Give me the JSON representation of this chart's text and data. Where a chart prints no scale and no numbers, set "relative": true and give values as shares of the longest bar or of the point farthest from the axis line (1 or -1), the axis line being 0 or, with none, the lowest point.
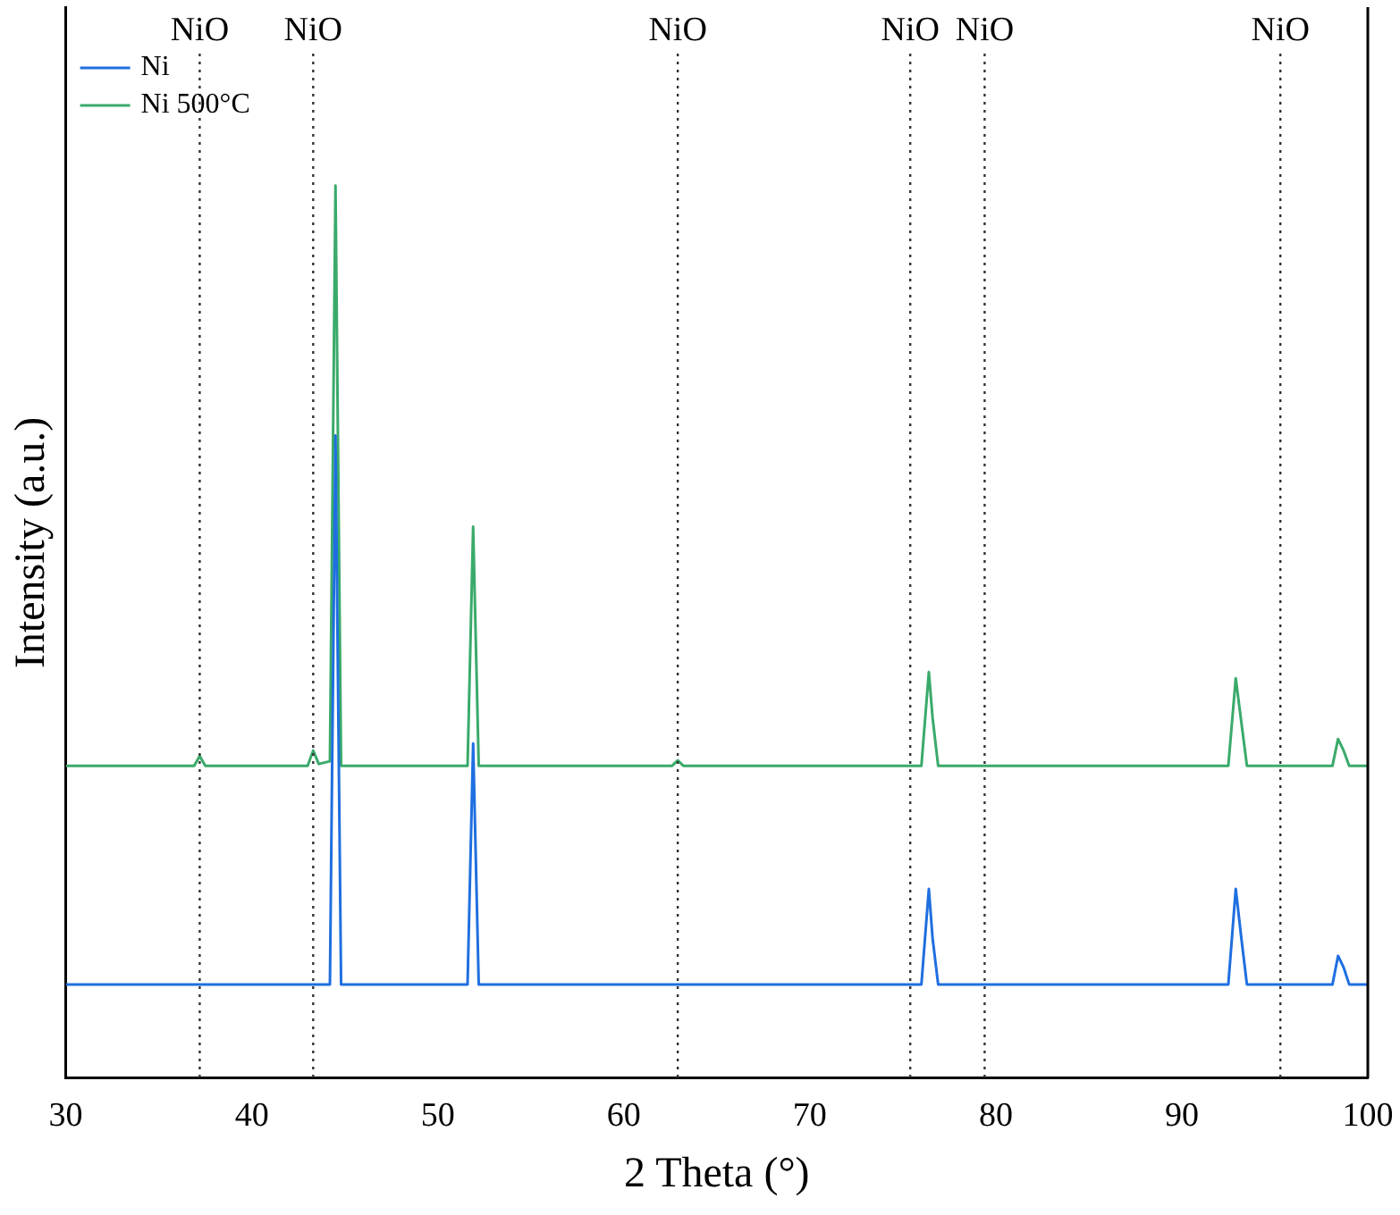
{
  "chart_data": {
    "type": "line",
    "relative": true,
    "xlabel": "2 Theta (°)",
    "ylabel": "Intensity (a.u.)",
    "xlim": [
      30,
      100
    ],
    "xticks": [
      30,
      40,
      50,
      60,
      70,
      80,
      90,
      100
    ],
    "legend": "top left",
    "grid": false,
    "marker": "none",
    "line_style": "solid",
    "series": [
      {
        "name": "Ni",
        "color": "#1f6fe0",
        "x": [
          30,
          44.2,
          44.5,
          44.8,
          51.6,
          51.9,
          52.2,
          76.0,
          76.4,
          76.6,
          76.9,
          92.5,
          92.9,
          93.2,
          93.5,
          98.1,
          98.4,
          98.7,
          99.0,
          100
        ],
        "values": [
          0.105,
          0.105,
          0.72,
          0.105,
          0.105,
          0.375,
          0.105,
          0.105,
          0.212,
          0.157,
          0.105,
          0.105,
          0.212,
          0.157,
          0.105,
          0.105,
          0.137,
          0.124,
          0.105,
          0.105
        ]
      },
      {
        "name": "Ni 500°C",
        "color": "#3aaa6a",
        "x": [
          30,
          36.9,
          37.2,
          37.5,
          43.0,
          43.3,
          43.6,
          44.2,
          44.5,
          44.8,
          51.6,
          51.9,
          52.2,
          62.6,
          62.9,
          63.2,
          76.0,
          76.4,
          76.6,
          76.9,
          92.5,
          92.9,
          93.2,
          93.5,
          98.1,
          98.4,
          98.7,
          99.0,
          100
        ],
        "values": [
          0.35,
          0.35,
          0.361,
          0.35,
          0.35,
          0.367,
          0.352,
          0.355,
          1,
          0.35,
          0.35,
          0.618,
          0.35,
          0.35,
          0.356,
          0.35,
          0.35,
          0.455,
          0.404,
          0.35,
          0.35,
          0.448,
          0.399,
          0.35,
          0.35,
          0.38,
          0.367,
          0.35,
          0.35
        ]
      }
    ],
    "ref_lines": [
      {
        "axis": "x",
        "value": 37.2,
        "label": "NiO",
        "line_style": "dotted"
      },
      {
        "axis": "x",
        "value": 43.3,
        "label": "NiO",
        "line_style": "dotted"
      },
      {
        "axis": "x",
        "value": 62.9,
        "label": "NiO",
        "line_style": "dotted"
      },
      {
        "axis": "x",
        "value": 75.4,
        "label": "NiO",
        "line_style": "dotted"
      },
      {
        "axis": "x",
        "value": 79.4,
        "label": "NiO",
        "line_style": "dotted"
      },
      {
        "axis": "x",
        "value": 95.3,
        "label": "NiO",
        "line_style": "dotted"
      }
    ]
  }
}
